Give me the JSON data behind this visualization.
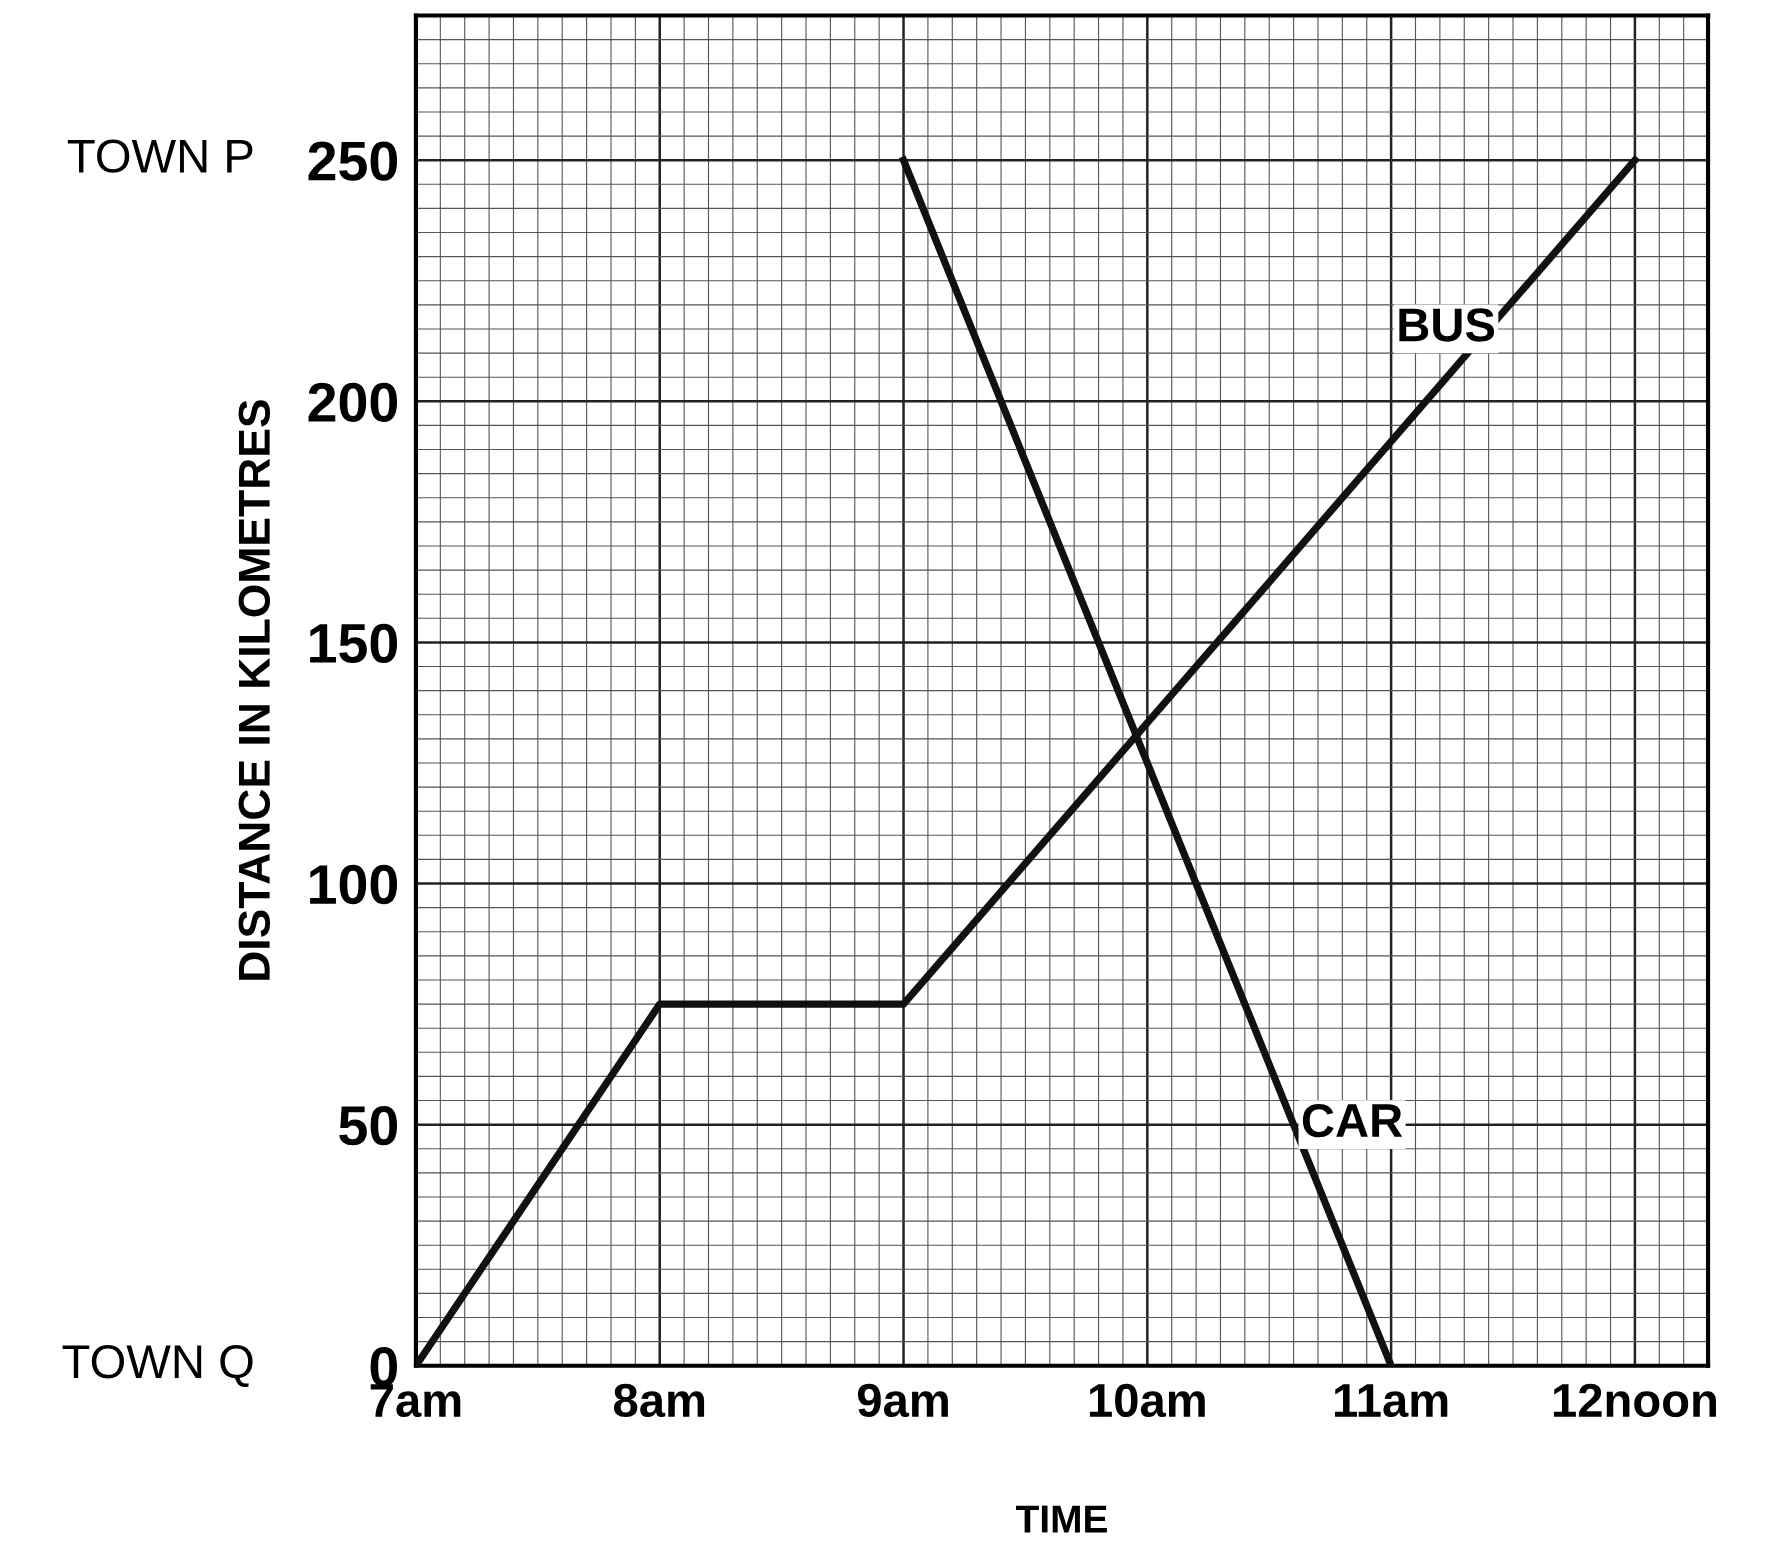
{
  "chart_data": {
    "type": "line",
    "xlabel": "TIME",
    "ylabel": "DISTANCE IN KILOMETRES",
    "series": [
      {
        "name": "BUS",
        "color": "#111111",
        "x": [
          7,
          8,
          9,
          12
        ],
        "values": [
          0,
          75,
          75,
          250
        ]
      },
      {
        "name": "CAR",
        "color": "#111111",
        "x": [
          9,
          11
        ],
        "values": [
          250,
          0
        ]
      }
    ],
    "annotations": [
      "TOWN P",
      "TOWN Q"
    ],
    "xlim": [
      7,
      12.3
    ],
    "xticks": [
      {
        "value": 7,
        "label": "7am"
      },
      {
        "value": 8,
        "label": "8am"
      },
      {
        "value": 9,
        "label": "9am"
      },
      {
        "value": 10,
        "label": "10am"
      },
      {
        "value": 11,
        "label": "11am"
      },
      {
        "value": 12,
        "label": "12noon"
      }
    ],
    "ylim": [
      0,
      280
    ],
    "yticks": [
      0,
      50,
      100,
      150,
      200,
      250
    ],
    "grid": true,
    "legend": false,
    "marker": "none",
    "line_style": "solid"
  }
}
